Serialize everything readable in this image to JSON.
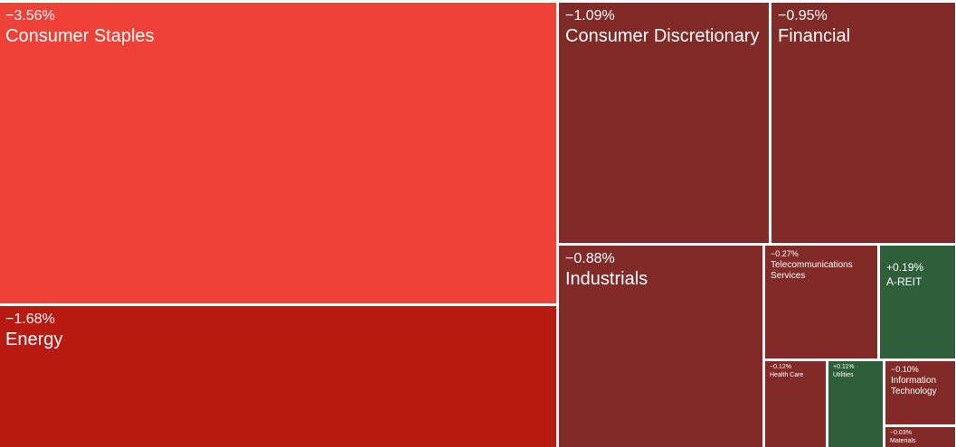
{
  "chart_data": {
    "type": "treemap",
    "items": [
      {
        "label": "Consumer Staples",
        "change": "−3.56%",
        "value": -3.56,
        "color": "#ef4136"
      },
      {
        "label": "Energy",
        "change": "−1.68%",
        "value": -1.68,
        "color": "#b81a12"
      },
      {
        "label": "Consumer Discretionary",
        "change": "−1.09%",
        "value": -1.09,
        "color": "#812a28"
      },
      {
        "label": "Financial",
        "change": "−0.95%",
        "value": -0.95,
        "color": "#812a28"
      },
      {
        "label": "Industrials",
        "change": "−0.88%",
        "value": -0.88,
        "color": "#812a28"
      },
      {
        "label": "Telecommunications Services",
        "change": "−0.27%",
        "value": -0.27,
        "color": "#812a28"
      },
      {
        "label": "A-REIT",
        "change": "+0.19%",
        "value": 0.19,
        "color": "#2f5e3a"
      },
      {
        "label": "Health Care",
        "change": "−0.12%",
        "value": -0.12,
        "color": "#812a28"
      },
      {
        "label": "Utilities",
        "change": "+0.11%",
        "value": 0.11,
        "color": "#2f5e3a"
      },
      {
        "label": "Information Technology",
        "change": "−0.10%",
        "value": -0.1,
        "color": "#812a28"
      },
      {
        "label": "Materials",
        "change": "−0.03%",
        "value": -0.03,
        "color": "#812a28"
      }
    ]
  }
}
